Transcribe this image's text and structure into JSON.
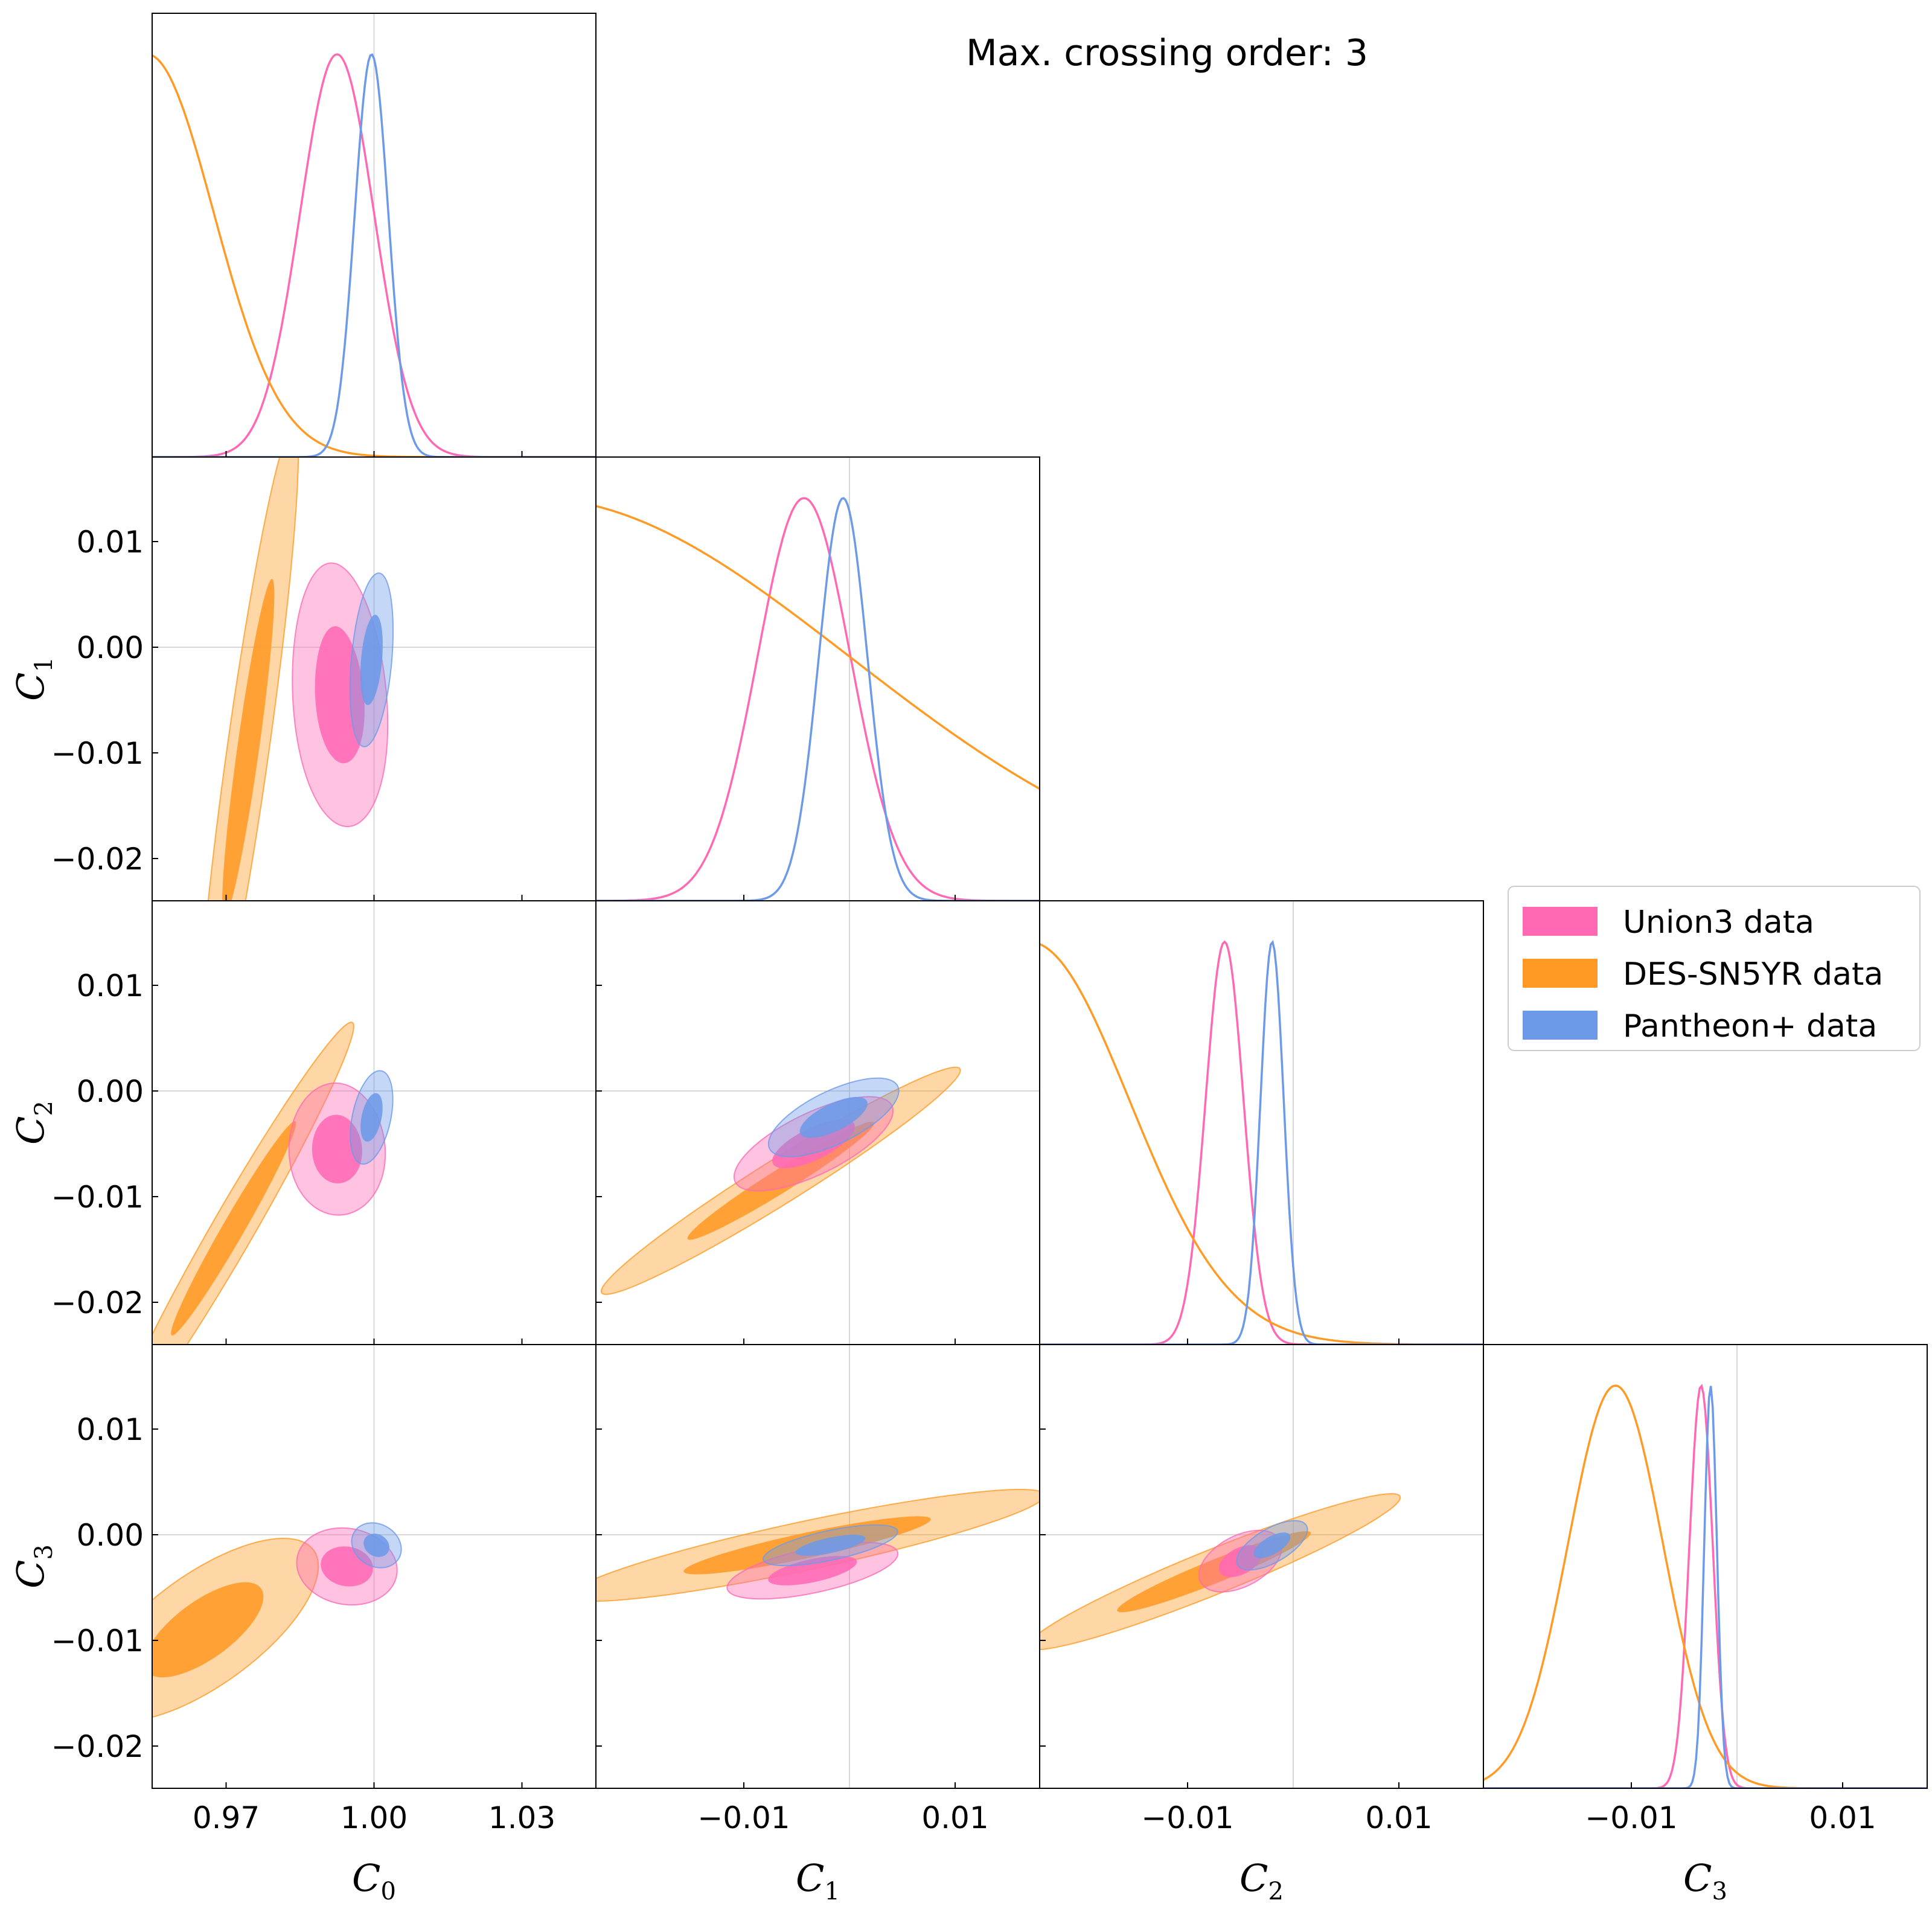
{
  "title": "Max. crossing order: 3",
  "colors": {
    "union3": "#ff69b4",
    "des": "#ff9a24",
    "pantheon": "#6d9ae8",
    "grid": "#d8d8d8",
    "frame": "#000000"
  },
  "legend": {
    "placement": "right",
    "items": [
      {
        "label": "Union3 data",
        "color": "#ff69b4"
      },
      {
        "label": "DES-SN5YR data",
        "color": "#ff9a24"
      },
      {
        "label": "Pantheon+ data",
        "color": "#6d9ae8"
      }
    ]
  },
  "chart_data": {
    "type": "triangle-corner",
    "parameters": [
      {
        "symbol": "C",
        "sub": "0",
        "range": [
          0.955,
          1.045
        ],
        "reference": 1.0,
        "ticks": [
          0.97,
          1.0,
          1.03
        ],
        "tick_labels": [
          "0.97",
          "1.00",
          "1.03"
        ]
      },
      {
        "symbol": "C",
        "sub": "1",
        "range": [
          -0.024,
          0.018
        ],
        "reference": 0.0,
        "ticks": [
          -0.01,
          0.01
        ],
        "tick_labels": [
          "−0.01",
          "0.01"
        ]
      },
      {
        "symbol": "C",
        "sub": "2",
        "range": [
          -0.024,
          0.018
        ],
        "reference": 0.0,
        "ticks": [
          -0.01,
          0.01
        ],
        "tick_labels": [
          "−0.01",
          "0.01"
        ]
      },
      {
        "symbol": "C",
        "sub": "3",
        "range": [
          -0.024,
          0.018
        ],
        "reference": 0.0,
        "ticks": [
          -0.01,
          0.01
        ],
        "tick_labels": [
          "−0.01",
          "0.01"
        ]
      }
    ],
    "y_ticks": [
      0.01,
      0.0,
      -0.01,
      -0.02
    ],
    "y_tick_labels": [
      "0.01",
      "0.00",
      "−0.01",
      "−0.02"
    ],
    "series": [
      {
        "name": "Union3 data",
        "color": "#ff69b4",
        "marginals": [
          {
            "mean": 0.9925,
            "sigma": 0.0075
          },
          {
            "mean": -0.0043,
            "sigma": 0.0044
          },
          {
            "mean": -0.0065,
            "sigma": 0.0018
          },
          {
            "mean": -0.0034,
            "sigma": 0.0011
          }
        ],
        "contours": [
          {
            "x": 0,
            "y": 1,
            "cx": 0.993,
            "cy": -0.0045,
            "w": 0.019,
            "h": 0.025,
            "rot": 4,
            "skew": 0.25
          },
          {
            "x": 0,
            "y": 2,
            "cx": 0.9925,
            "cy": -0.0055,
            "w": 0.0195,
            "h": 0.0125,
            "rot": 3,
            "skew": 0.15
          },
          {
            "x": 1,
            "y": 2,
            "cx": -0.0034,
            "cy": -0.005,
            "w": 0.0165,
            "h": 0.0058,
            "rot": 26,
            "skew": 0.0
          },
          {
            "x": 0,
            "y": 3,
            "cx": 0.9945,
            "cy": -0.003,
            "w": 0.0205,
            "h": 0.0072,
            "rot": -10,
            "skew": 0.0
          },
          {
            "x": 1,
            "y": 3,
            "cx": -0.0035,
            "cy": -0.0034,
            "w": 0.0165,
            "h": 0.0042,
            "rot": 12,
            "skew": 0.0
          },
          {
            "x": 2,
            "y": 3,
            "cx": -0.005,
            "cy": -0.0025,
            "w": 0.0085,
            "h": 0.0048,
            "rot": 28,
            "skew": 0.0
          }
        ]
      },
      {
        "name": "DES-SN5YR data",
        "color": "#ff9a24",
        "marginals": [
          {
            "mean": 0.954,
            "sigma": 0.0135
          },
          {
            "mean": -0.03,
            "sigma": 0.03
          },
          {
            "mean": -0.025,
            "sigma": 0.0095
          },
          {
            "mean": -0.0115,
            "sigma": 0.0045
          }
        ],
        "contours": [
          {
            "x": 0,
            "y": 1,
            "cx": 0.9745,
            "cy": -0.0095,
            "w": 0.0085,
            "h": 0.062,
            "rot": -8,
            "skew": 0.0
          },
          {
            "x": 0,
            "y": 2,
            "cx": 0.9715,
            "cy": -0.013,
            "w": 0.0085,
            "h": 0.045,
            "rot": -30,
            "skew": 0.0
          },
          {
            "x": 1,
            "y": 2,
            "cx": -0.0065,
            "cy": -0.0085,
            "w": 0.04,
            "h": 0.0042,
            "rot": 32,
            "skew": 0.0
          },
          {
            "x": 0,
            "y": 3,
            "cx": 0.9655,
            "cy": -0.009,
            "w": 0.055,
            "h": 0.0105,
            "rot": 36,
            "skew": 0.0
          },
          {
            "x": 1,
            "y": 3,
            "cx": -0.004,
            "cy": -0.001,
            "w": 0.046,
            "h": 0.0046,
            "rot": 12,
            "skew": 0.0
          },
          {
            "x": 2,
            "y": 3,
            "cx": -0.0075,
            "cy": -0.0035,
            "w": 0.038,
            "h": 0.0042,
            "rot": 22,
            "skew": 0.0
          }
        ]
      },
      {
        "name": "Pantheon+ data",
        "color": "#6d9ae8",
        "marginals": [
          {
            "mean": 0.9995,
            "sigma": 0.0034
          },
          {
            "mean": -0.0006,
            "sigma": 0.0023
          },
          {
            "mean": -0.002,
            "sigma": 0.0011
          },
          {
            "mean": -0.0025,
            "sigma": 0.0006
          }
        ],
        "contours": [
          {
            "x": 0,
            "y": 1,
            "cx": 0.9995,
            "cy": -0.0012,
            "w": 0.0082,
            "h": 0.0165,
            "rot": -5,
            "skew": 0.0
          },
          {
            "x": 0,
            "y": 2,
            "cx": 0.9995,
            "cy": -0.0025,
            "w": 0.0078,
            "h": 0.009,
            "rot": -12,
            "skew": 0.0
          },
          {
            "x": 1,
            "y": 2,
            "cx": -0.0015,
            "cy": -0.0025,
            "w": 0.0135,
            "h": 0.005,
            "rot": 26,
            "skew": 0.0
          },
          {
            "x": 0,
            "y": 3,
            "cx": 1.0005,
            "cy": -0.001,
            "w": 0.0105,
            "h": 0.004,
            "rot": -30,
            "skew": 0.0
          },
          {
            "x": 1,
            "y": 3,
            "cx": -0.0018,
            "cy": -0.001,
            "w": 0.013,
            "h": 0.0028,
            "rot": 12,
            "skew": 0.0
          },
          {
            "x": 2,
            "y": 3,
            "cx": -0.002,
            "cy": -0.001,
            "w": 0.0075,
            "h": 0.0032,
            "rot": 30,
            "skew": 0.0
          }
        ]
      }
    ]
  }
}
